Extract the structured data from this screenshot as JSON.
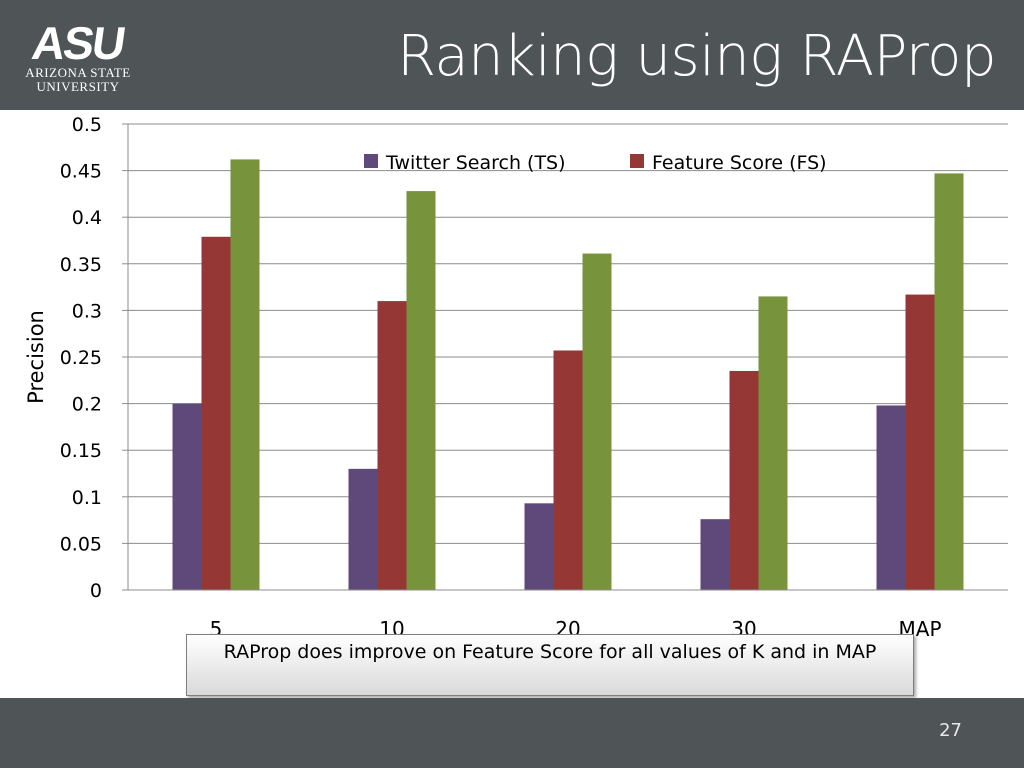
{
  "header": {
    "logo_mark": "ASU",
    "logo_line1": "Arizona State",
    "logo_line2": "University",
    "title": "Ranking using RAProp"
  },
  "callout": {
    "text": "RAProp does improve on Feature Score for all values of K and in MAP"
  },
  "footer": {
    "page_number": "27"
  },
  "chart_data": {
    "type": "bar",
    "ylabel": "Precision",
    "xlabel": "",
    "ylim": [
      0,
      0.5
    ],
    "yticks": [
      0,
      0.05,
      0.1,
      0.15,
      0.2,
      0.25,
      0.3,
      0.35,
      0.4,
      0.45,
      0.5
    ],
    "ytick_labels": [
      "0",
      "0.05",
      "0.1",
      "0.15",
      "0.2",
      "0.25",
      "0.3",
      "0.35",
      "0.4",
      "0.45",
      "0.5"
    ],
    "categories": [
      "5",
      "10",
      "20",
      "30",
      "MAP"
    ],
    "grid": true,
    "legend_position": "top",
    "series": [
      {
        "name": "Twitter Search (TS)",
        "color": "#5f497a",
        "values": [
          0.2,
          0.13,
          0.093,
          0.076,
          0.198
        ],
        "in_legend": true
      },
      {
        "name": "Feature Score (FS)",
        "color": "#953735",
        "values": [
          0.379,
          0.31,
          0.257,
          0.235,
          0.317
        ],
        "in_legend": true
      },
      {
        "name": "",
        "color": "#77933c",
        "values": [
          0.462,
          0.428,
          0.361,
          0.315,
          0.447
        ],
        "in_legend": false
      }
    ]
  }
}
